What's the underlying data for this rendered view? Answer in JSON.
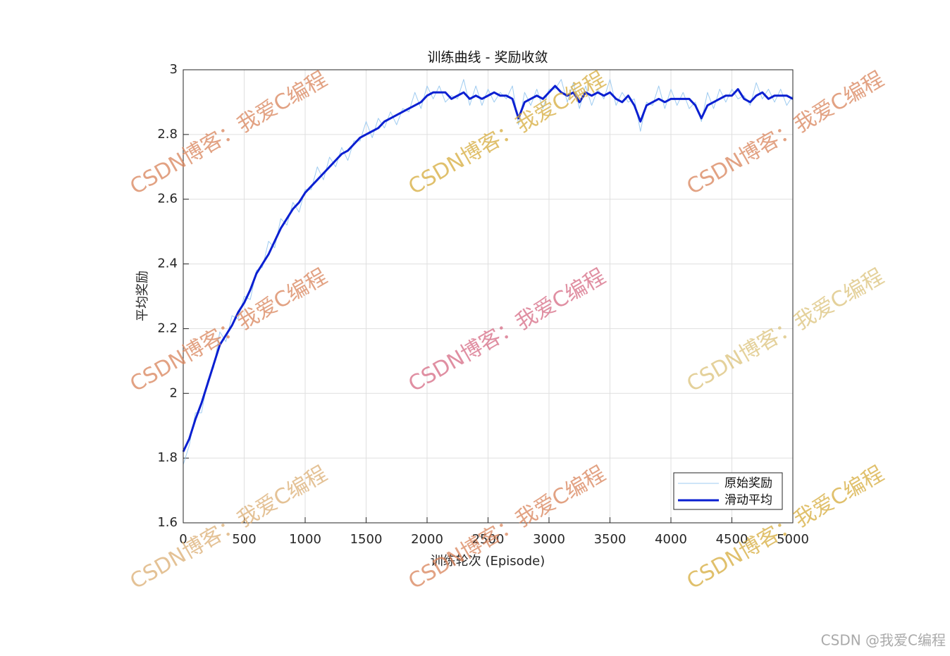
{
  "chart_data": {
    "type": "line",
    "title": "训练曲线 - 奖励收敛",
    "x_label": "训练轮次 (Episode)",
    "y_label": "平均奖励",
    "watermark": "CSDN博客：我爱C编程",
    "footer": "CSDN @我爱C编程",
    "x": [
      0,
      50,
      100,
      150,
      200,
      250,
      300,
      350,
      400,
      450,
      500,
      550,
      600,
      650,
      700,
      750,
      800,
      850,
      900,
      950,
      1000,
      1050,
      1100,
      1150,
      1200,
      1250,
      1300,
      1350,
      1400,
      1450,
      1500,
      1550,
      1600,
      1650,
      1700,
      1750,
      1800,
      1850,
      1900,
      1950,
      2000,
      2050,
      2100,
      2150,
      2200,
      2250,
      2300,
      2350,
      2400,
      2450,
      2500,
      2550,
      2600,
      2650,
      2700,
      2750,
      2800,
      2850,
      2900,
      2950,
      3000,
      3050,
      3100,
      3150,
      3200,
      3250,
      3300,
      3350,
      3400,
      3450,
      3500,
      3550,
      3600,
      3650,
      3700,
      3750,
      3800,
      3850,
      3900,
      3950,
      4000,
      4050,
      4100,
      4150,
      4200,
      4250,
      4300,
      4350,
      4400,
      4450,
      4500,
      4550,
      4600,
      4650,
      4700,
      4750,
      4800,
      4850,
      4900,
      4950,
      5000
    ],
    "series": [
      {
        "name": "原始奖励",
        "color": "#9ecbf0",
        "width": 1,
        "values": [
          1.78,
          1.84,
          1.94,
          1.94,
          2.04,
          2.08,
          2.19,
          2.16,
          2.24,
          2.23,
          2.3,
          2.29,
          2.38,
          2.39,
          2.47,
          2.45,
          2.54,
          2.52,
          2.59,
          2.56,
          2.63,
          2.63,
          2.7,
          2.66,
          2.73,
          2.7,
          2.76,
          2.72,
          2.78,
          2.78,
          2.84,
          2.79,
          2.85,
          2.82,
          2.87,
          2.83,
          2.88,
          2.87,
          2.93,
          2.88,
          2.95,
          2.91,
          2.95,
          2.9,
          2.92,
          2.91,
          2.97,
          2.89,
          2.95,
          2.89,
          2.94,
          2.9,
          2.93,
          2.91,
          2.95,
          2.83,
          2.93,
          2.89,
          2.94,
          2.88,
          2.94,
          2.94,
          2.97,
          2.9,
          2.96,
          2.88,
          2.95,
          2.89,
          2.94,
          2.91,
          2.97,
          2.89,
          2.93,
          2.9,
          2.91,
          2.81,
          2.9,
          2.89,
          2.95,
          2.88,
          2.94,
          2.89,
          2.93,
          2.88,
          2.9,
          2.84,
          2.93,
          2.88,
          2.94,
          2.9,
          2.94,
          2.91,
          2.92,
          2.89,
          2.96,
          2.91,
          2.94,
          2.9,
          2.94,
          2.89,
          2.92
        ]
      },
      {
        "name": "滑动平均",
        "color": "#0a1fd1",
        "width": 3,
        "values": [
          1.82,
          1.86,
          1.92,
          1.97,
          2.03,
          2.09,
          2.15,
          2.18,
          2.21,
          2.25,
          2.28,
          2.32,
          2.37,
          2.4,
          2.43,
          2.47,
          2.51,
          2.54,
          2.57,
          2.59,
          2.62,
          2.64,
          2.66,
          2.68,
          2.7,
          2.72,
          2.74,
          2.75,
          2.77,
          2.79,
          2.8,
          2.81,
          2.82,
          2.84,
          2.85,
          2.86,
          2.87,
          2.88,
          2.89,
          2.9,
          2.92,
          2.93,
          2.93,
          2.93,
          2.91,
          2.92,
          2.93,
          2.91,
          2.92,
          2.91,
          2.92,
          2.93,
          2.92,
          2.92,
          2.91,
          2.85,
          2.9,
          2.91,
          2.92,
          2.91,
          2.93,
          2.95,
          2.93,
          2.92,
          2.93,
          2.9,
          2.93,
          2.92,
          2.93,
          2.92,
          2.93,
          2.91,
          2.9,
          2.92,
          2.89,
          2.84,
          2.89,
          2.9,
          2.91,
          2.9,
          2.91,
          2.91,
          2.91,
          2.91,
          2.89,
          2.85,
          2.89,
          2.9,
          2.91,
          2.92,
          2.92,
          2.94,
          2.91,
          2.9,
          2.92,
          2.93,
          2.91,
          2.92,
          2.92,
          2.92,
          2.91
        ]
      }
    ],
    "xlim": [
      0,
      5000
    ],
    "xticks": [
      0,
      500,
      1000,
      1500,
      2000,
      2500,
      3000,
      3500,
      4000,
      4500,
      5000
    ],
    "ylim": [
      1.6,
      3
    ],
    "yticks": [
      1.6,
      1.8,
      2,
      2.2,
      2.4,
      2.6,
      2.8,
      3
    ],
    "grid": true,
    "legend": "lower right"
  }
}
